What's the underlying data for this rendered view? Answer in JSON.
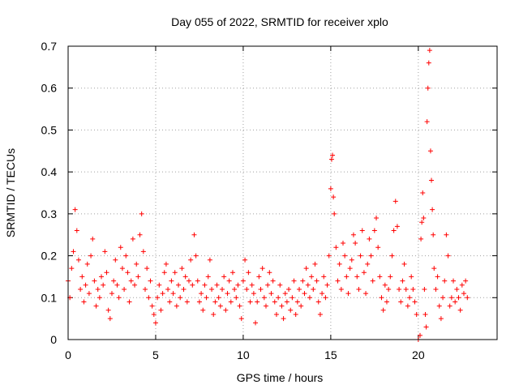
{
  "chart_data": {
    "type": "scatter",
    "title": "Day 055 of 2022, SRMTID for receiver xplo",
    "xlabel": "GPS time / hours",
    "ylabel": "SRMTID / TECUs",
    "xlim": [
      0,
      24.5
    ],
    "ylim": [
      0,
      0.7
    ],
    "xticks": [
      0,
      5,
      10,
      15,
      20
    ],
    "xtick_labels": [
      "0",
      "5",
      "10",
      "15",
      "20"
    ],
    "yticks": [
      0,
      0.1,
      0.2,
      0.3,
      0.4,
      0.5,
      0.6,
      0.7
    ],
    "ytick_labels": [
      "0",
      "0.1",
      "0.2",
      "0.3",
      "0.4",
      "0.5",
      "0.6",
      "0.7"
    ],
    "grid": true,
    "marker": "+",
    "color": "#ff0000",
    "series": [
      {
        "name": "SRMTID",
        "points": [
          [
            0.0,
            0.14
          ],
          [
            0.1,
            0.1
          ],
          [
            0.2,
            0.17
          ],
          [
            0.3,
            0.21
          ],
          [
            0.4,
            0.31
          ],
          [
            0.5,
            0.26
          ],
          [
            0.6,
            0.19
          ],
          [
            0.7,
            0.12
          ],
          [
            0.8,
            0.15
          ],
          [
            0.9,
            0.09
          ],
          [
            1.0,
            0.13
          ],
          [
            1.1,
            0.18
          ],
          [
            1.2,
            0.11
          ],
          [
            1.3,
            0.2
          ],
          [
            1.4,
            0.24
          ],
          [
            1.5,
            0.14
          ],
          [
            1.6,
            0.08
          ],
          [
            1.7,
            0.12
          ],
          [
            1.8,
            0.1
          ],
          [
            1.9,
            0.15
          ],
          [
            2.0,
            0.13
          ],
          [
            2.1,
            0.21
          ],
          [
            2.2,
            0.16
          ],
          [
            2.3,
            0.07
          ],
          [
            2.4,
            0.05
          ],
          [
            2.5,
            0.11
          ],
          [
            2.6,
            0.14
          ],
          [
            2.7,
            0.19
          ],
          [
            2.8,
            0.13
          ],
          [
            2.9,
            0.1
          ],
          [
            3.0,
            0.22
          ],
          [
            3.1,
            0.17
          ],
          [
            3.2,
            0.12
          ],
          [
            3.3,
            0.2
          ],
          [
            3.4,
            0.16
          ],
          [
            3.5,
            0.09
          ],
          [
            3.6,
            0.14
          ],
          [
            3.7,
            0.24
          ],
          [
            3.8,
            0.13
          ],
          [
            3.9,
            0.18
          ],
          [
            4.0,
            0.15
          ],
          [
            4.1,
            0.25
          ],
          [
            4.2,
            0.3
          ],
          [
            4.3,
            0.21
          ],
          [
            4.4,
            0.12
          ],
          [
            4.5,
            0.17
          ],
          [
            4.6,
            0.1
          ],
          [
            4.7,
            0.14
          ],
          [
            4.8,
            0.08
          ],
          [
            4.9,
            0.06
          ],
          [
            5.0,
            0.04
          ],
          [
            5.1,
            0.1
          ],
          [
            5.2,
            0.13
          ],
          [
            5.3,
            0.07
          ],
          [
            5.4,
            0.11
          ],
          [
            5.5,
            0.16
          ],
          [
            5.6,
            0.18
          ],
          [
            5.7,
            0.12
          ],
          [
            5.8,
            0.09
          ],
          [
            5.9,
            0.14
          ],
          [
            6.0,
            0.11
          ],
          [
            6.1,
            0.16
          ],
          [
            6.2,
            0.08
          ],
          [
            6.3,
            0.13
          ],
          [
            6.4,
            0.1
          ],
          [
            6.5,
            0.17
          ],
          [
            6.6,
            0.12
          ],
          [
            6.7,
            0.15
          ],
          [
            6.8,
            0.09
          ],
          [
            6.9,
            0.14
          ],
          [
            7.0,
            0.19
          ],
          [
            7.1,
            0.13
          ],
          [
            7.2,
            0.25
          ],
          [
            7.3,
            0.2
          ],
          [
            7.4,
            0.14
          ],
          [
            7.5,
            0.09
          ],
          [
            7.6,
            0.11
          ],
          [
            7.7,
            0.07
          ],
          [
            7.8,
            0.13
          ],
          [
            7.9,
            0.1
          ],
          [
            8.0,
            0.15
          ],
          [
            8.1,
            0.19
          ],
          [
            8.2,
            0.12
          ],
          [
            8.3,
            0.06
          ],
          [
            8.4,
            0.09
          ],
          [
            8.5,
            0.13
          ],
          [
            8.6,
            0.1
          ],
          [
            8.7,
            0.08
          ],
          [
            8.8,
            0.12
          ],
          [
            8.9,
            0.15
          ],
          [
            9.0,
            0.07
          ],
          [
            9.1,
            0.11
          ],
          [
            9.2,
            0.14
          ],
          [
            9.3,
            0.09
          ],
          [
            9.4,
            0.16
          ],
          [
            9.5,
            0.12
          ],
          [
            9.6,
            0.1
          ],
          [
            9.7,
            0.13
          ],
          [
            9.8,
            0.08
          ],
          [
            9.9,
            0.05
          ],
          [
            10.0,
            0.14
          ],
          [
            10.1,
            0.19
          ],
          [
            10.2,
            0.12
          ],
          [
            10.3,
            0.16
          ],
          [
            10.4,
            0.09
          ],
          [
            10.5,
            0.13
          ],
          [
            10.6,
            0.11
          ],
          [
            10.7,
            0.04
          ],
          [
            10.8,
            0.09
          ],
          [
            10.9,
            0.15
          ],
          [
            11.0,
            0.12
          ],
          [
            11.1,
            0.17
          ],
          [
            11.2,
            0.1
          ],
          [
            11.3,
            0.08
          ],
          [
            11.4,
            0.13
          ],
          [
            11.5,
            0.16
          ],
          [
            11.6,
            0.11
          ],
          [
            11.7,
            0.14
          ],
          [
            11.8,
            0.09
          ],
          [
            11.9,
            0.06
          ],
          [
            12.0,
            0.1
          ],
          [
            12.1,
            0.13
          ],
          [
            12.2,
            0.08
          ],
          [
            12.3,
            0.05
          ],
          [
            12.4,
            0.11
          ],
          [
            12.5,
            0.09
          ],
          [
            12.6,
            0.12
          ],
          [
            12.7,
            0.07
          ],
          [
            12.8,
            0.1
          ],
          [
            12.9,
            0.14
          ],
          [
            13.0,
            0.06
          ],
          [
            13.1,
            0.09
          ],
          [
            13.2,
            0.12
          ],
          [
            13.3,
            0.08
          ],
          [
            13.4,
            0.14
          ],
          [
            13.5,
            0.11
          ],
          [
            13.6,
            0.17
          ],
          [
            13.7,
            0.13
          ],
          [
            13.8,
            0.1
          ],
          [
            13.9,
            0.15
          ],
          [
            14.0,
            0.12
          ],
          [
            14.1,
            0.18
          ],
          [
            14.2,
            0.14
          ],
          [
            14.3,
            0.09
          ],
          [
            14.4,
            0.06
          ],
          [
            14.5,
            0.11
          ],
          [
            14.6,
            0.15
          ],
          [
            14.7,
            0.1
          ],
          [
            14.8,
            0.13
          ],
          [
            14.9,
            0.2
          ],
          [
            15.0,
            0.36
          ],
          [
            15.05,
            0.43
          ],
          [
            15.1,
            0.44
          ],
          [
            15.15,
            0.34
          ],
          [
            15.2,
            0.3
          ],
          [
            15.3,
            0.22
          ],
          [
            15.4,
            0.14
          ],
          [
            15.5,
            0.18
          ],
          [
            15.6,
            0.12
          ],
          [
            15.7,
            0.23
          ],
          [
            15.8,
            0.2
          ],
          [
            15.9,
            0.15
          ],
          [
            16.0,
            0.11
          ],
          [
            16.1,
            0.17
          ],
          [
            16.2,
            0.19
          ],
          [
            16.3,
            0.25
          ],
          [
            16.4,
            0.23
          ],
          [
            16.5,
            0.15
          ],
          [
            16.6,
            0.12
          ],
          [
            16.7,
            0.2
          ],
          [
            16.8,
            0.26
          ],
          [
            16.9,
            0.16
          ],
          [
            17.0,
            0.11
          ],
          [
            17.1,
            0.18
          ],
          [
            17.2,
            0.24
          ],
          [
            17.3,
            0.2
          ],
          [
            17.4,
            0.14
          ],
          [
            17.5,
            0.26
          ],
          [
            17.6,
            0.29
          ],
          [
            17.7,
            0.22
          ],
          [
            17.8,
            0.15
          ],
          [
            17.9,
            0.1
          ],
          [
            18.0,
            0.07
          ],
          [
            18.1,
            0.13
          ],
          [
            18.2,
            0.09
          ],
          [
            18.3,
            0.12
          ],
          [
            18.4,
            0.15
          ],
          [
            18.5,
            0.2
          ],
          [
            18.6,
            0.26
          ],
          [
            18.7,
            0.33
          ],
          [
            18.8,
            0.27
          ],
          [
            18.9,
            0.12
          ],
          [
            19.0,
            0.09
          ],
          [
            19.1,
            0.14
          ],
          [
            19.2,
            0.18
          ],
          [
            19.3,
            0.12
          ],
          [
            19.4,
            0.08
          ],
          [
            19.5,
            0.1
          ],
          [
            19.6,
            0.15
          ],
          [
            19.7,
            0.12
          ],
          [
            19.8,
            0.09
          ],
          [
            19.9,
            0.06
          ],
          [
            20.0,
            0.0
          ],
          [
            20.1,
            0.01
          ],
          [
            20.15,
            0.24
          ],
          [
            20.2,
            0.28
          ],
          [
            20.25,
            0.35
          ],
          [
            20.3,
            0.29
          ],
          [
            20.35,
            0.12
          ],
          [
            20.4,
            0.06
          ],
          [
            20.45,
            0.03
          ],
          [
            20.5,
            0.52
          ],
          [
            20.55,
            0.6
          ],
          [
            20.6,
            0.66
          ],
          [
            20.65,
            0.69
          ],
          [
            20.7,
            0.45
          ],
          [
            20.75,
            0.38
          ],
          [
            20.8,
            0.31
          ],
          [
            20.85,
            0.25
          ],
          [
            20.9,
            0.17
          ],
          [
            21.0,
            0.12
          ],
          [
            21.1,
            0.15
          ],
          [
            21.2,
            0.08
          ],
          [
            21.3,
            0.05
          ],
          [
            21.4,
            0.1
          ],
          [
            21.5,
            0.14
          ],
          [
            21.6,
            0.25
          ],
          [
            21.7,
            0.2
          ],
          [
            21.8,
            0.08
          ],
          [
            21.9,
            0.1
          ],
          [
            22.0,
            0.14
          ],
          [
            22.1,
            0.09
          ],
          [
            22.2,
            0.12
          ],
          [
            22.3,
            0.1
          ],
          [
            22.4,
            0.07
          ],
          [
            22.5,
            0.13
          ],
          [
            22.6,
            0.11
          ],
          [
            22.7,
            0.14
          ],
          [
            22.8,
            0.1
          ]
        ]
      }
    ]
  }
}
